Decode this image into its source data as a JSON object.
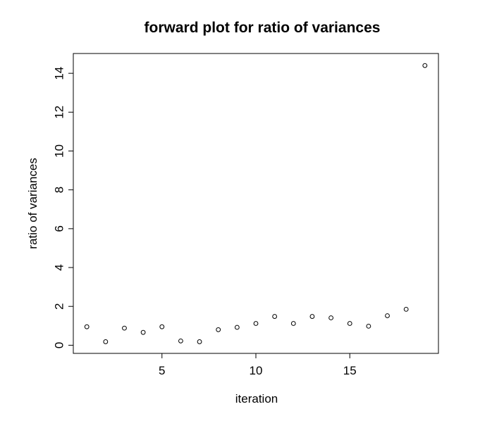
{
  "chart_data": {
    "type": "scatter",
    "title": "forward plot for ratio of variances",
    "xlabel": "iteration",
    "ylabel": "ratio of variances",
    "xlim": [
      0.28,
      19.72
    ],
    "ylim": [
      -0.42,
      15.02
    ],
    "x_ticks": [
      5,
      10,
      15
    ],
    "y_ticks": [
      0,
      2,
      4,
      6,
      8,
      10,
      12,
      14
    ],
    "grid": false,
    "marker": "open-circle",
    "series": [
      {
        "x": [
          1,
          2,
          3,
          4,
          5,
          6,
          7,
          8,
          9,
          10,
          11,
          12,
          13,
          14,
          15,
          16,
          17,
          18,
          19
        ],
        "y": [
          0.95,
          0.18,
          0.88,
          0.66,
          0.95,
          0.22,
          0.18,
          0.8,
          0.92,
          1.12,
          1.48,
          1.12,
          1.48,
          1.41,
          1.12,
          0.98,
          1.52,
          1.85,
          14.4
        ]
      }
    ]
  }
}
